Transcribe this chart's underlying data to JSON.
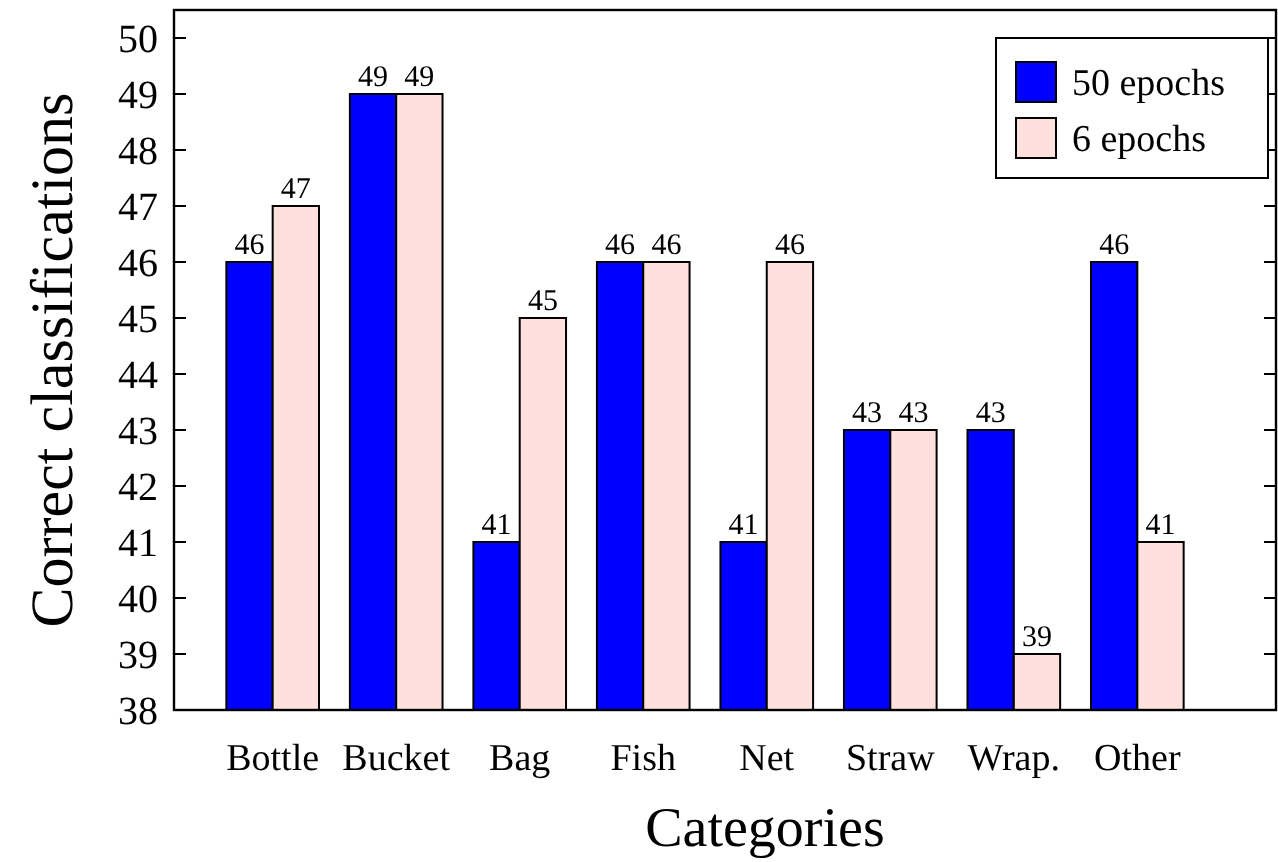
{
  "chart_data": {
    "type": "bar",
    "xlabel": "Categories",
    "ylabel": "Correct classifications",
    "categories": [
      "Bottle",
      "Bucket",
      "Bag",
      "Fish",
      "Net",
      "Straw",
      "Wrap.",
      "Other"
    ],
    "series": [
      {
        "name": "50 epochs",
        "color": "#0000ff",
        "values": [
          46,
          49,
          41,
          46,
          41,
          43,
          43,
          46
        ]
      },
      {
        "name": "6 epochs",
        "color": "#ffe0dc",
        "values": [
          47,
          49,
          45,
          46,
          46,
          43,
          39,
          41
        ]
      }
    ],
    "ylim": [
      38,
      50.5
    ],
    "yticks": [
      38,
      39,
      40,
      41,
      42,
      43,
      44,
      45,
      46,
      47,
      48,
      49,
      50
    ],
    "data_labels": true,
    "grid": false,
    "legend": "top right"
  }
}
